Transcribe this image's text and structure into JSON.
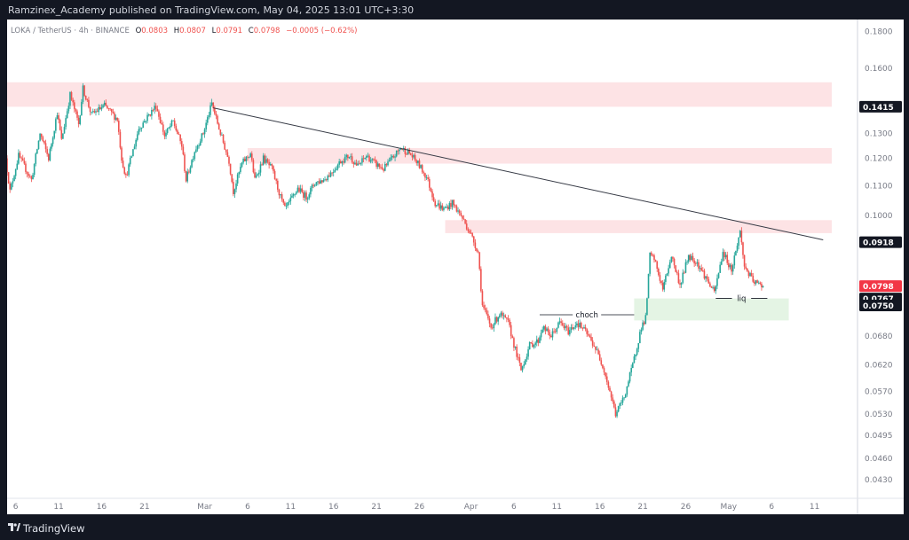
{
  "header": {
    "published_line": "Ramzinex_Academy published on TradingView.com, May 04, 2025 13:01 UTC+3:30"
  },
  "legend": {
    "symbol": "LOKA / TetherUS · 4h · BINANCE",
    "o_label": "O",
    "o_value": "0.0803",
    "h_label": "H",
    "h_value": "0.0807",
    "l_label": "L",
    "l_value": "0.0791",
    "c_label": "C",
    "c_value": "0.0798",
    "change": "−0.0005 (−0.62%)"
  },
  "footer": {
    "brand": "TradingView"
  },
  "colors": {
    "up": "#26a69a",
    "down": "#ef5350",
    "zone_supply": "#fde3e5",
    "zone_demand": "#e4f4e4",
    "trendline": "#363a45",
    "last_price": "#f23645",
    "frame": "#131722"
  },
  "chart_data": {
    "type": "candlestick",
    "interval": "4h",
    "y_scale": "log",
    "ylim": [
      0.0405,
      0.187
    ],
    "x_domain_days": [
      -36,
      63
    ],
    "y_ticks": [
      "0.1800",
      "0.1600",
      "0.1415",
      "0.1300",
      "0.1200",
      "0.1100",
      "0.1000",
      "0.0918",
      "0.0798",
      "0.0767",
      "0.0750",
      "0.0680",
      "0.0620",
      "0.0570",
      "0.0530",
      "0.0495",
      "0.0460",
      "0.0430"
    ],
    "x_ticks": [
      {
        "label": "6",
        "day": -35
      },
      {
        "label": "11",
        "day": -30
      },
      {
        "label": "16",
        "day": -25
      },
      {
        "label": "21",
        "day": -20
      },
      {
        "label": "Mar",
        "day": -13
      },
      {
        "label": "6",
        "day": -8
      },
      {
        "label": "11",
        "day": -3
      },
      {
        "label": "16",
        "day": 2
      },
      {
        "label": "21",
        "day": 7
      },
      {
        "label": "26",
        "day": 12
      },
      {
        "label": "Apr",
        "day": 18
      },
      {
        "label": "6",
        "day": 23
      },
      {
        "label": "11",
        "day": 28
      },
      {
        "label": "16",
        "day": 33
      },
      {
        "label": "21",
        "day": 38
      },
      {
        "label": "26",
        "day": 43
      },
      {
        "label": "May",
        "day": 48
      },
      {
        "label": "6",
        "day": 53
      },
      {
        "label": "11",
        "day": 58
      }
    ],
    "price_labels": [
      {
        "value": 0.1415,
        "text": "0.1415",
        "style": "dark"
      },
      {
        "value": 0.0918,
        "text": "0.0918",
        "style": "dark"
      },
      {
        "value": 0.0798,
        "text": "0.0798",
        "style": "last"
      },
      {
        "value": 0.0767,
        "text": "0.0767",
        "style": "dark"
      },
      {
        "value": 0.075,
        "text": "0.0750",
        "style": "dark"
      }
    ],
    "zones": [
      {
        "kind": "supply",
        "from_day": -36,
        "to_day": 60,
        "low": 0.1415,
        "high": 0.153
      },
      {
        "kind": "supply",
        "from_day": -8,
        "to_day": 60,
        "low": 0.118,
        "high": 0.124
      },
      {
        "kind": "supply",
        "from_day": 15,
        "to_day": 60,
        "low": 0.0945,
        "high": 0.0985
      },
      {
        "kind": "demand",
        "from_day": 37,
        "to_day": 55,
        "low": 0.0715,
        "high": 0.0767
      }
    ],
    "trendline": {
      "from": [
        -12,
        0.141
      ],
      "to": [
        59,
        0.0925
      ]
    },
    "annotations": [
      {
        "text": "choch",
        "from_day": 26,
        "to_day": 37,
        "value": 0.0728
      },
      {
        "text": "liq",
        "from_day": 46.5,
        "to_day": 52.5,
        "value": 0.0767
      }
    ],
    "path_points": [
      [
        -36,
        0.12
      ],
      [
        -35.5,
        0.108
      ],
      [
        -34.5,
        0.121
      ],
      [
        -33,
        0.112
      ],
      [
        -32,
        0.13
      ],
      [
        -31,
        0.12
      ],
      [
        -30,
        0.139
      ],
      [
        -29.5,
        0.127
      ],
      [
        -28.5,
        0.147
      ],
      [
        -27.5,
        0.134
      ],
      [
        -27,
        0.15
      ],
      [
        -26,
        0.138
      ],
      [
        -24.5,
        0.142
      ],
      [
        -23,
        0.136
      ],
      [
        -22.5,
        0.12
      ],
      [
        -22,
        0.113
      ],
      [
        -20.5,
        0.132
      ],
      [
        -19.5,
        0.137
      ],
      [
        -18.5,
        0.142
      ],
      [
        -17.5,
        0.129
      ],
      [
        -16.5,
        0.135
      ],
      [
        -15.5,
        0.125
      ],
      [
        -15,
        0.112
      ],
      [
        -14,
        0.123
      ],
      [
        -13,
        0.13
      ],
      [
        -12,
        0.143
      ],
      [
        -11,
        0.13
      ],
      [
        -10,
        0.119
      ],
      [
        -9.5,
        0.108
      ],
      [
        -8.5,
        0.118
      ],
      [
        -7.5,
        0.122
      ],
      [
        -7,
        0.112
      ],
      [
        -6,
        0.12
      ],
      [
        -5,
        0.116
      ],
      [
        -4,
        0.106
      ],
      [
        -3.5,
        0.102
      ],
      [
        -3,
        0.104
      ],
      [
        -2,
        0.109
      ],
      [
        -1,
        0.106
      ],
      [
        0,
        0.111
      ],
      [
        1,
        0.112
      ],
      [
        2,
        0.115
      ],
      [
        3,
        0.119
      ],
      [
        4,
        0.121
      ],
      [
        5,
        0.117
      ],
      [
        6,
        0.121
      ],
      [
        7,
        0.118
      ],
      [
        8,
        0.116
      ],
      [
        9,
        0.12
      ],
      [
        10,
        0.124
      ],
      [
        11,
        0.122
      ],
      [
        12,
        0.118
      ],
      [
        13,
        0.113
      ],
      [
        14,
        0.104
      ],
      [
        15,
        0.102
      ],
      [
        16,
        0.104
      ],
      [
        17,
        0.1
      ],
      [
        18,
        0.095
      ],
      [
        19,
        0.089
      ],
      [
        19.5,
        0.075
      ],
      [
        20.5,
        0.07
      ],
      [
        21.5,
        0.073
      ],
      [
        22.5,
        0.071
      ],
      [
        23.5,
        0.064
      ],
      [
        24,
        0.061
      ],
      [
        25,
        0.066
      ],
      [
        26,
        0.067
      ],
      [
        26.5,
        0.07
      ],
      [
        27.5,
        0.068
      ],
      [
        28.5,
        0.071
      ],
      [
        29.5,
        0.069
      ],
      [
        30.5,
        0.071
      ],
      [
        31.5,
        0.069
      ],
      [
        32.5,
        0.066
      ],
      [
        33.5,
        0.062
      ],
      [
        34.5,
        0.056
      ],
      [
        35,
        0.053
      ],
      [
        36,
        0.056
      ],
      [
        37,
        0.062
      ],
      [
        38,
        0.07
      ],
      [
        38.5,
        0.072
      ],
      [
        39,
        0.088
      ],
      [
        39.5,
        0.087
      ],
      [
        40.5,
        0.079
      ],
      [
        41.5,
        0.088
      ],
      [
        42.5,
        0.08
      ],
      [
        43.5,
        0.088
      ],
      [
        44.5,
        0.086
      ],
      [
        45.5,
        0.082
      ],
      [
        46.5,
        0.078
      ],
      [
        47.5,
        0.089
      ],
      [
        48.5,
        0.084
      ],
      [
        49.5,
        0.095
      ],
      [
        50,
        0.085
      ],
      [
        51,
        0.081
      ],
      [
        52,
        0.0798
      ]
    ]
  }
}
